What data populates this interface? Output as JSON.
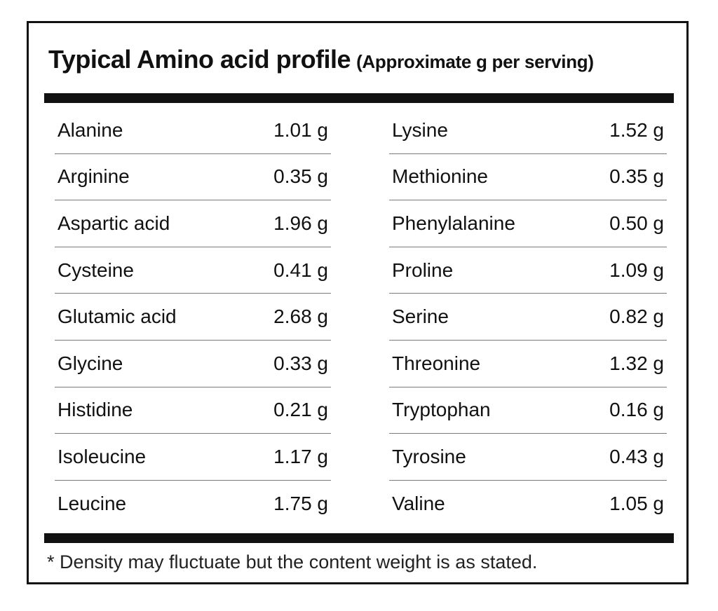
{
  "title": {
    "main": "Typical Amino acid profile",
    "sub": "(Approximate g per serving)"
  },
  "left_column": [
    {
      "name": "Alanine",
      "value": "1.01 g"
    },
    {
      "name": "Arginine",
      "value": "0.35 g"
    },
    {
      "name": "Aspartic acid",
      "value": "1.96 g"
    },
    {
      "name": "Cysteine",
      "value": "0.41 g"
    },
    {
      "name": "Glutamic acid",
      "value": "2.68 g"
    },
    {
      "name": "Glycine",
      "value": "0.33 g"
    },
    {
      "name": "Histidine",
      "value": "0.21 g"
    },
    {
      "name": "Isoleucine",
      "value": "1.17 g"
    },
    {
      "name": "Leucine",
      "value": "1.75 g"
    }
  ],
  "right_column": [
    {
      "name": "Lysine",
      "value": "1.52 g"
    },
    {
      "name": "Methionine",
      "value": "0.35 g"
    },
    {
      "name": "Phenylalanine",
      "value": "0.50 g"
    },
    {
      "name": "Proline",
      "value": "1.09 g"
    },
    {
      "name": "Serine",
      "value": "0.82 g"
    },
    {
      "name": "Threonine",
      "value": "1.32 g"
    },
    {
      "name": "Tryptophan",
      "value": "0.16 g"
    },
    {
      "name": "Tyrosine",
      "value": "0.43 g"
    },
    {
      "name": "Valine",
      "value": "1.05 g"
    }
  ],
  "footnote": "* Density may fluctuate but the content weight is as stated."
}
